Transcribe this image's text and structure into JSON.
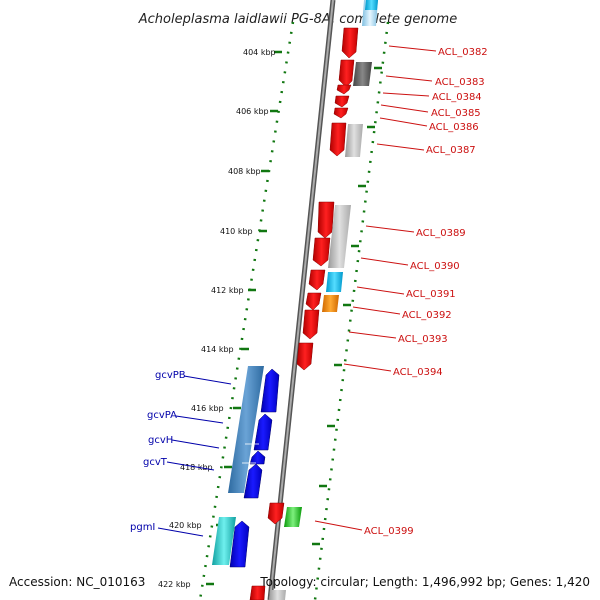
{
  "title": "Acholeplasma laidlawii PG-8A, complete genome",
  "footer": {
    "accession": "Accession: NC_010163",
    "topology": "Topology: circular; Length: 1,496,992 bp; Genes: 1,420"
  },
  "tick_labels": [
    "404 kbp",
    "406 kbp",
    "408 kbp",
    "410 kbp",
    "412 kbp",
    "414 kbp",
    "416 kbp",
    "418 kbp",
    "420 kbp",
    "422 kbp"
  ],
  "right_labels": [
    "ACL_0382",
    "ACL_0383",
    "ACL_0384",
    "ACL_0385",
    "ACL_0386",
    "ACL_0387",
    "ACL_0389",
    "ACL_0390",
    "ACL_0391",
    "ACL_0392",
    "ACL_0393",
    "ACL_0394",
    "ACL_0399"
  ],
  "left_labels": [
    "gcvPB",
    "gcvPA",
    "gcvH",
    "gcvT",
    "pgmI"
  ],
  "colors": {
    "strand_forward": "#ee1111",
    "strand_reverse": "#0000ee",
    "backbone": "#888888",
    "dotted_ring": "#117711",
    "label_red": "#cc1111",
    "label_blue": "#0000aa"
  }
}
